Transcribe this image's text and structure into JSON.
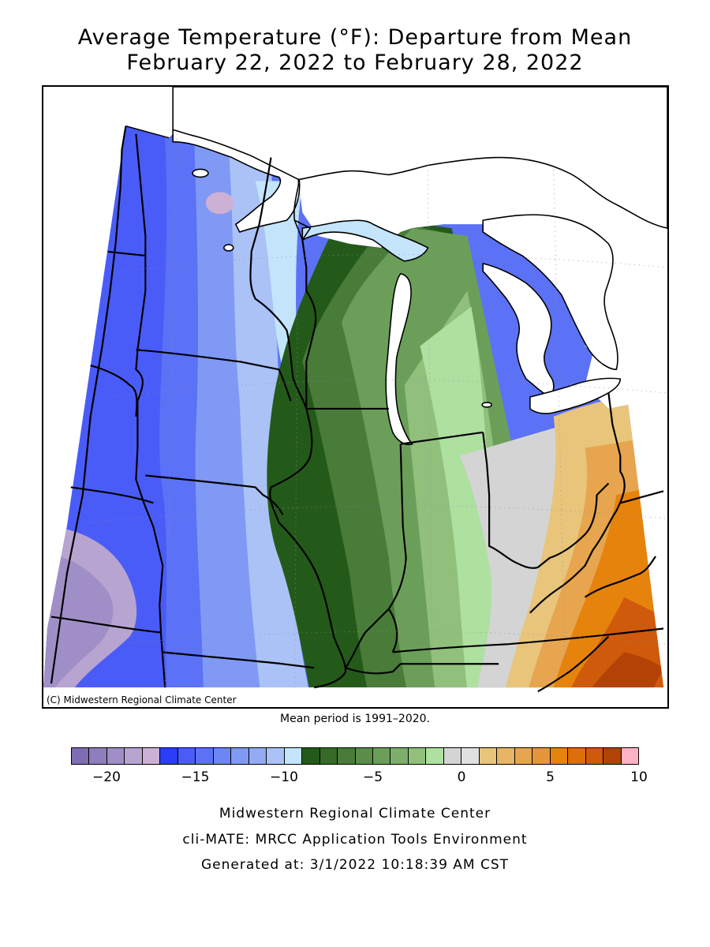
{
  "title": {
    "line1": "Average Temperature (°F): Departure from Mean",
    "line2": "February 22, 2022 to February 28, 2022"
  },
  "map": {
    "copyright": "(C) Midwestern Regional Climate Center",
    "mean_period": "Mean period is 1991–2020."
  },
  "legend": {
    "min": -22,
    "max": 10,
    "colors": [
      "#7f6db3",
      "#8f7ebe",
      "#a08fc7",
      "#b8a4d1",
      "#cdb1d5",
      "#2b3df7",
      "#4a5cf7",
      "#5b72f6",
      "#6c86f6",
      "#7f99f5",
      "#94abf4",
      "#aac2f5",
      "#c3e4fb",
      "#245a19",
      "#366b27",
      "#487c38",
      "#5a8e49",
      "#6b9f59",
      "#7daf6a",
      "#90c07c",
      "#aee0a0",
      "#d4d4d4",
      "#e0e0e0",
      "#e8c57a",
      "#e7b565",
      "#e6a54e",
      "#e5963b",
      "#e6830c",
      "#de6e09",
      "#cf5a0b",
      "#b24205",
      "#ffb2c2"
    ],
    "ticks": [
      "-20",
      "-15",
      "-10",
      "-5",
      "0",
      "5",
      "10"
    ]
  },
  "footer": {
    "line1": "Midwestern Regional Climate Center",
    "line2": "cli-MATE: MRCC Application Tools Environment",
    "line3": "Generated at: 3/1/2022 10:18:39 AM CST"
  }
}
